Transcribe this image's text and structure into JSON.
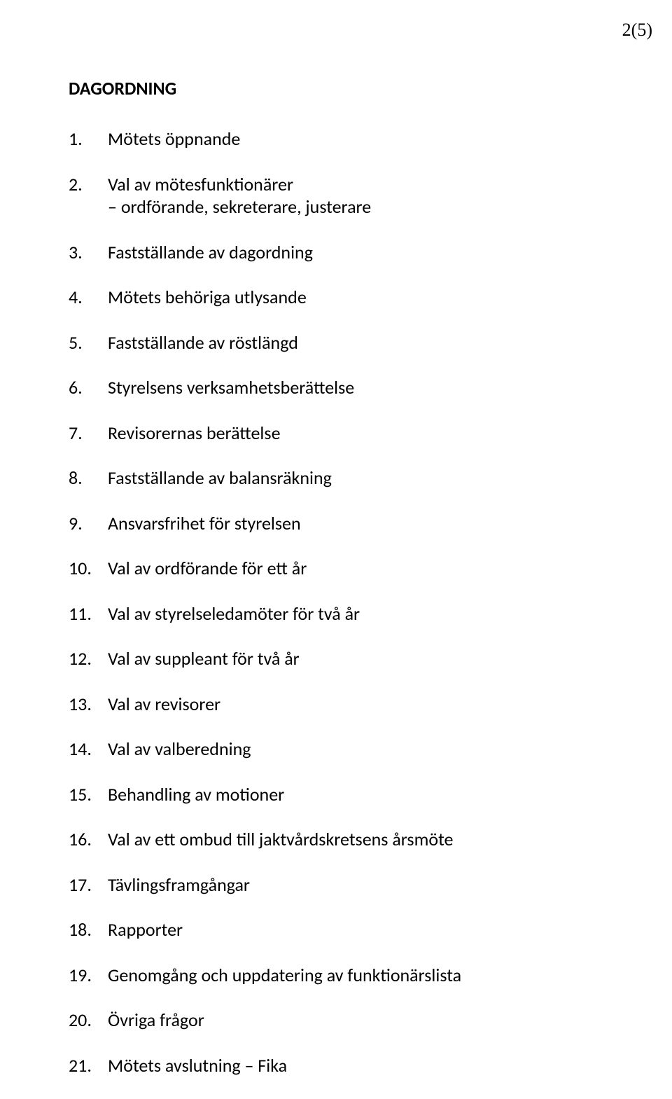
{
  "page_number": "2(5)",
  "heading": "DAGORDNING",
  "font": {
    "body_family": "Calibri",
    "pagenum_family": "Times New Roman",
    "body_size_pt": 11,
    "heading_weight": "bold"
  },
  "colors": {
    "text": "#000000",
    "background": "#ffffff"
  },
  "items": [
    {
      "n": "1.",
      "text": "Mötets öppnande"
    },
    {
      "n": "2.",
      "text": "Val av mötesfunktionärer",
      "sub": "– ordförande, sekreterare, justerare"
    },
    {
      "n": "3.",
      "text": "Fastställande av dagordning"
    },
    {
      "n": "4.",
      "text": "Mötets behöriga utlysande"
    },
    {
      "n": "5.",
      "text": "Fastställande av röstlängd"
    },
    {
      "n": "6.",
      "text": "Styrelsens verksamhetsberättelse"
    },
    {
      "n": "7.",
      "text": "Revisorernas berättelse"
    },
    {
      "n": "8.",
      "text": "Fastställande av balansräkning"
    },
    {
      "n": "9.",
      "text": "Ansvarsfrihet för styrelsen"
    },
    {
      "n": "10.",
      "text": "Val av ordförande för ett år"
    },
    {
      "n": "11.",
      "text": "Val av styrelseledamöter för två år"
    },
    {
      "n": "12.",
      "text": " Val av suppleant för två år"
    },
    {
      "n": "13.",
      "text": "Val av revisorer"
    },
    {
      "n": "14.",
      "text": "Val av valberedning"
    },
    {
      "n": "15.",
      "text": "Behandling av motioner"
    },
    {
      "n": "16.",
      "text": "Val av ett ombud till jaktvårdskretsens årsmöte"
    },
    {
      "n": "17.",
      "text": "Tävlingsframgångar"
    },
    {
      "n": "18.",
      "text": "Rapporter"
    },
    {
      "n": "19.",
      "text": "Genomgång och uppdatering av funktionärslista"
    },
    {
      "n": "20.",
      "text": "Övriga frågor"
    },
    {
      "n": "21.",
      "text": "Mötets avslutning – Fika"
    }
  ]
}
